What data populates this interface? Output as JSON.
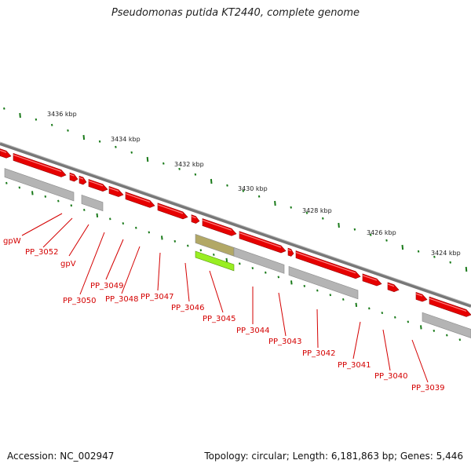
{
  "title": "Pseudomonas putida KT2440, complete genome",
  "footer": {
    "accession": "Accession: NC_002947",
    "summary": "Topology: circular; Length: 6,181,863 bp; Genes: 5,446"
  },
  "colors": {
    "forward_gene": "#e60000",
    "reverse_gene": "#b4b4b4",
    "highlight_gene": "#99ee22",
    "tick": "#1a7a1a",
    "backbone": "#777777",
    "label": "#d40000"
  },
  "kbp_labels": [
    "3436 kbp",
    "3434 kbp",
    "3432 kbp",
    "3430 kbp",
    "3428 kbp",
    "3426 kbp",
    "3424 kbp"
  ],
  "gene_labels": [
    "gpW",
    "PP_3052",
    "gpV",
    "PP_3050",
    "PP_3049",
    "PP_3048",
    "PP_3047",
    "PP_3046",
    "PP_3045",
    "PP_3044",
    "PP_3043",
    "PP_3042",
    "PP_3041",
    "PP_3040",
    "PP_3039"
  ]
}
